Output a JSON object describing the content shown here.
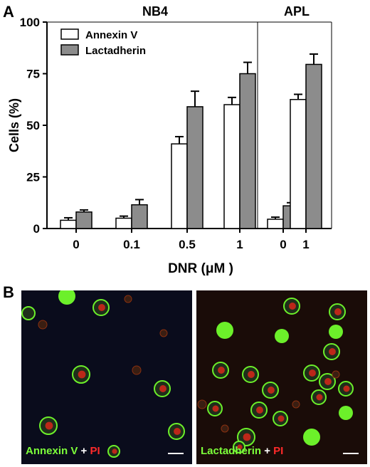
{
  "panel_labels": {
    "a": "A",
    "b": "B"
  },
  "chart_data": {
    "type": "bar",
    "group_titles": [
      "NB4",
      "APL"
    ],
    "groups": [
      {
        "title": "NB4",
        "categories": [
          "0",
          "0.1",
          "0.5",
          "1"
        ]
      },
      {
        "title": "APL",
        "categories": [
          "0",
          "1"
        ]
      }
    ],
    "categories": [
      "0",
      "0.1",
      "0.5",
      "1",
      "0",
      "1"
    ],
    "series": [
      {
        "name": "Annexin V",
        "color": "#ffffff",
        "values": [
          4,
          5,
          41,
          60,
          4.5,
          62.5
        ],
        "errors": [
          1.2,
          1.0,
          3.5,
          3.5,
          1.0,
          2.5
        ]
      },
      {
        "name": "Lactadherin",
        "color": "#8c8c8c",
        "values": [
          8,
          11.5,
          59,
          75,
          11,
          79.5
        ],
        "errors": [
          1.0,
          2.5,
          7.5,
          5.5,
          1.5,
          5.0
        ]
      }
    ],
    "xlabel": "DNR (μM )",
    "ylabel": "Cells (%)",
    "ylim": [
      0,
      100
    ],
    "yticks": [
      "0",
      "25",
      "50",
      "75",
      "100"
    ],
    "legend_position": "top-left",
    "grid": false
  },
  "micrographs": [
    {
      "stain": "Annexin V",
      "joiner": "+",
      "counterstain": "PI",
      "background": "#0a0c1c"
    },
    {
      "stain": "Lactadherin",
      "joiner": "+",
      "counterstain": "PI",
      "background": "#1a0c08"
    }
  ]
}
